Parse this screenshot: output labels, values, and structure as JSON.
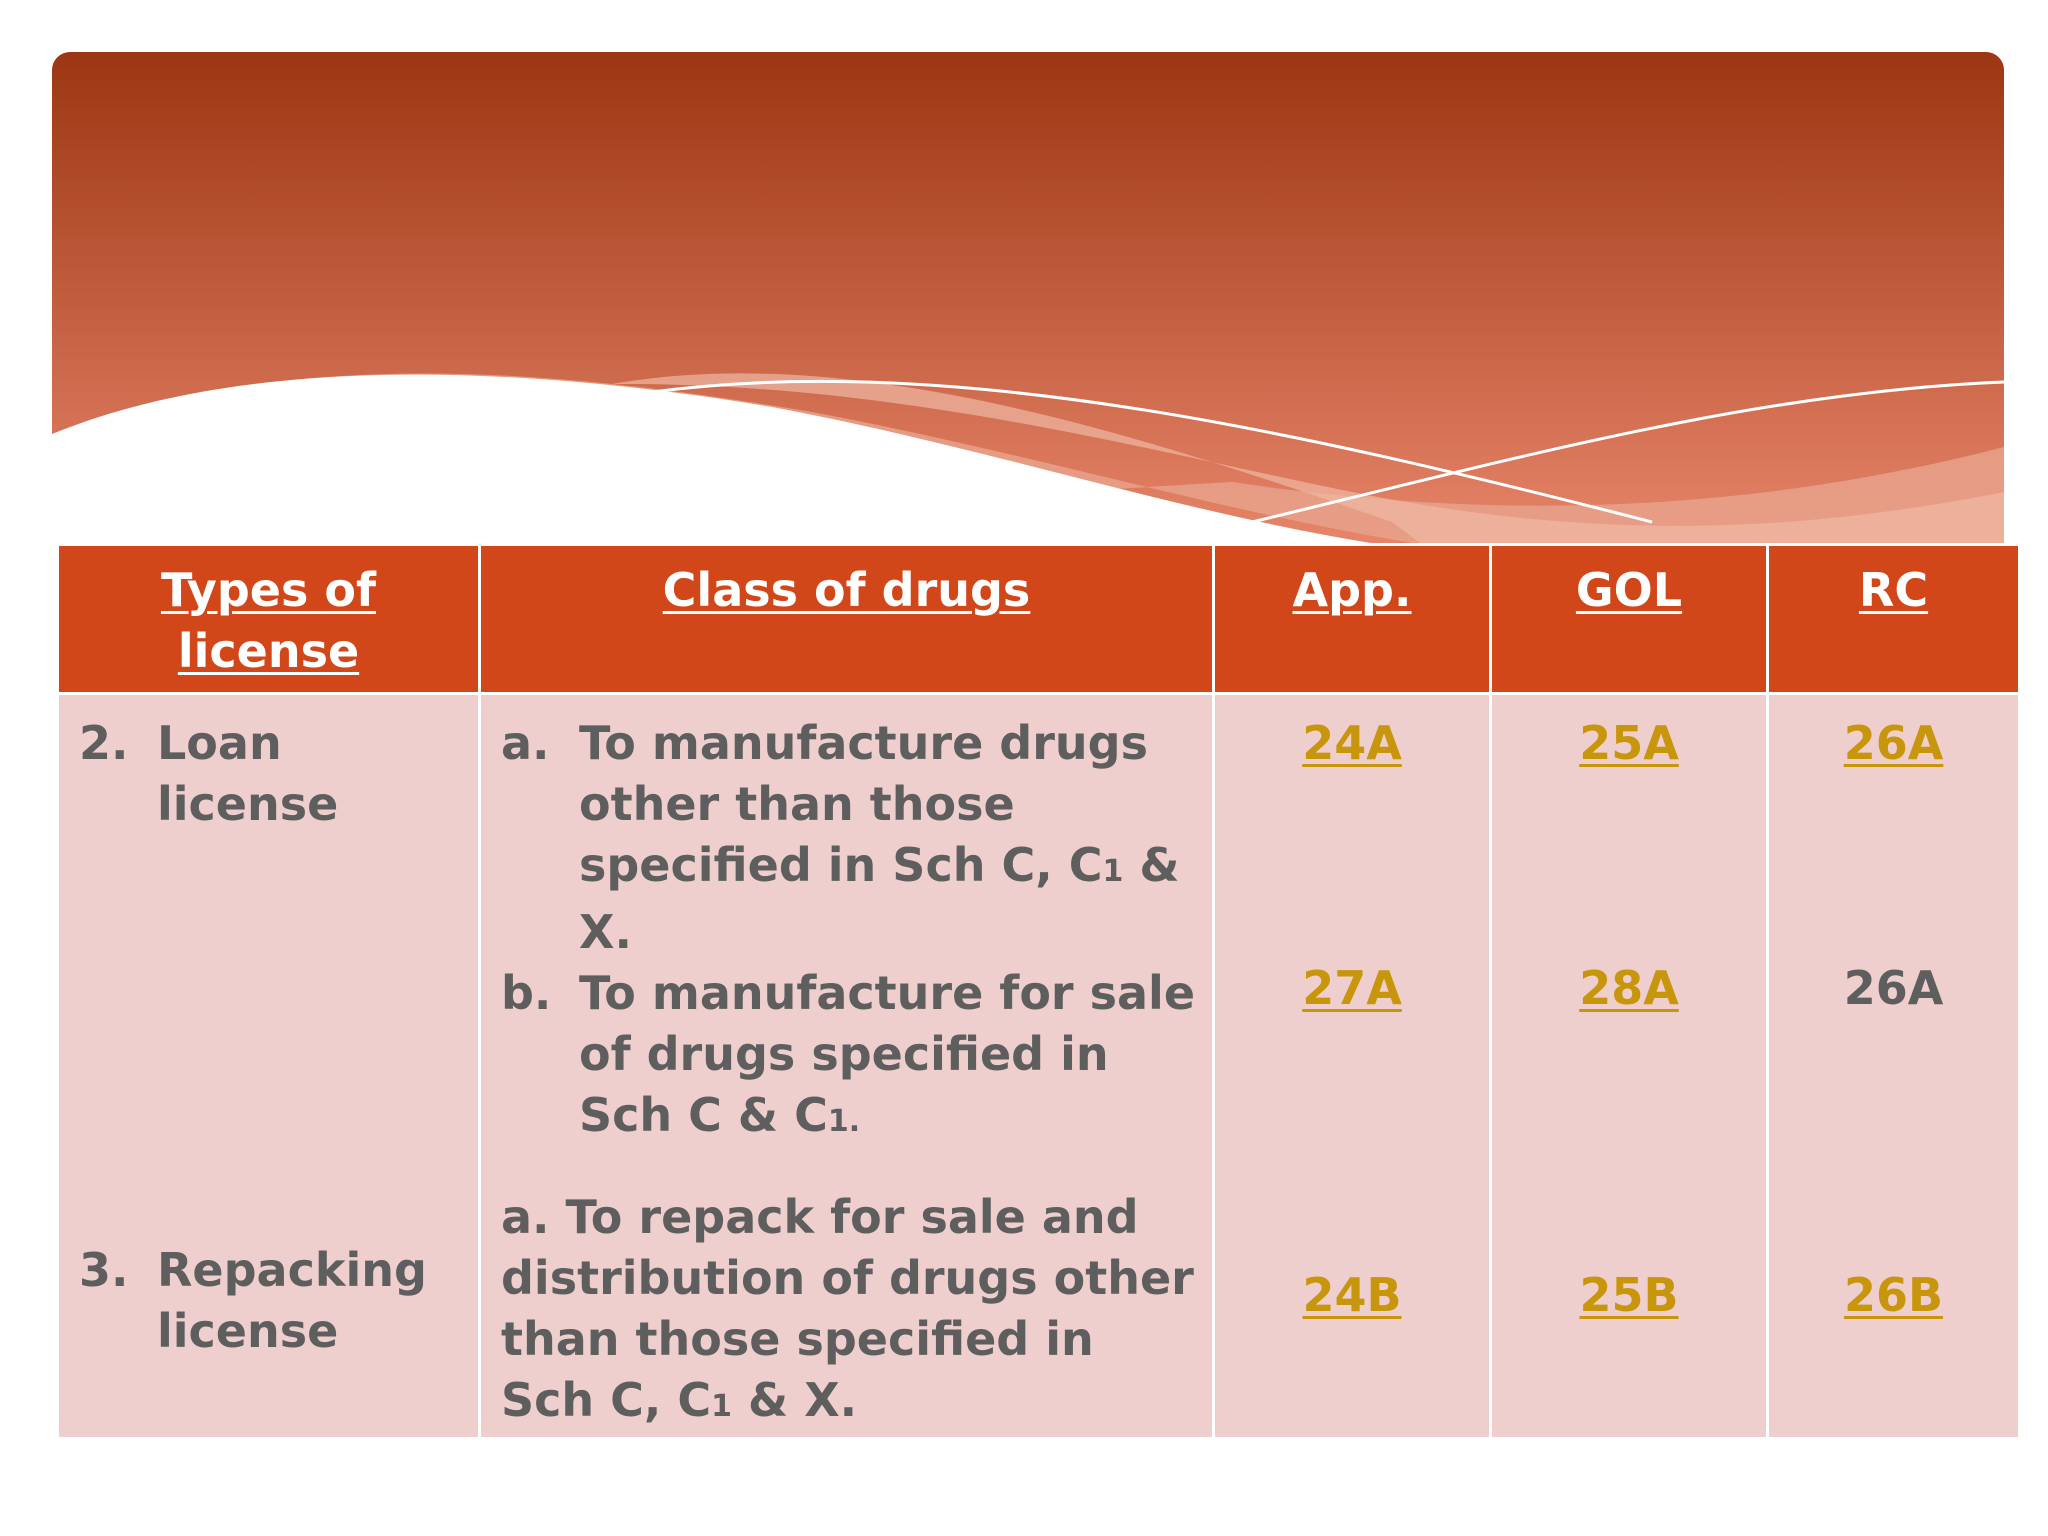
{
  "colors": {
    "header_bg": "#d2471a",
    "cell_bg": "#efcfce",
    "body_text": "#5e5e5e",
    "link_text": "#c8960c",
    "banner_top": "#9c3612",
    "banner_bottom": "#e8866b"
  },
  "table": {
    "headers": {
      "type": "Types of license",
      "class": "Class of drugs",
      "app": "App.",
      "gol": "GOL",
      "rc": "RC"
    },
    "rows": [
      {
        "type": {
          "num": "2.",
          "text": "Loan license"
        },
        "classes": [
          {
            "mark": "a.",
            "text_before": "To manufacture drugs other than those specified in Sch C, C",
            "sub": "1",
            "text_after": " & X."
          },
          {
            "mark": "b.",
            "text_before": "To manufacture for sale of drugs specified in Sch C & C",
            "sub": "1.",
            "text_after": ""
          }
        ],
        "app": [
          "24A",
          "27A"
        ],
        "gol": [
          "25A",
          "28A"
        ],
        "rc": [
          "26A",
          "26A"
        ]
      },
      {
        "type": {
          "num": "3.",
          "text": "Repacking license"
        },
        "classes": [
          {
            "mark": "a.",
            "text_before": "To repack for sale and distribution of drugs other than those specified in Sch C, C",
            "sub": "1",
            "text_after": " & X."
          }
        ],
        "app": [
          "24B"
        ],
        "gol": [
          "25B"
        ],
        "rc": [
          "26B"
        ]
      }
    ]
  }
}
